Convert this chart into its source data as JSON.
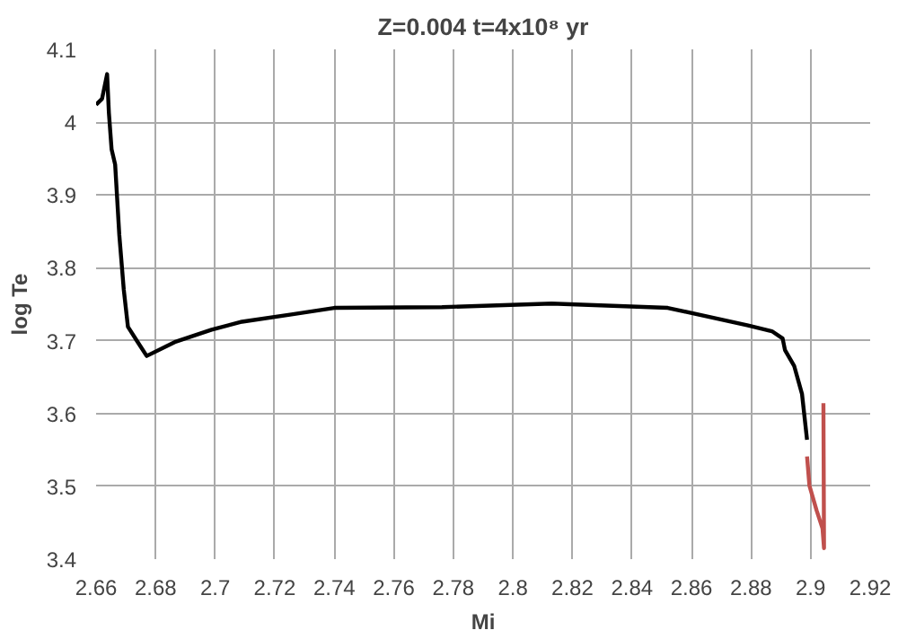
{
  "chart_data": {
    "type": "line",
    "title": "Z=0.004 t=4x10⁸ yr",
    "xlabel": "Mi",
    "ylabel": "log Te",
    "xlim": [
      2.66,
      2.92
    ],
    "ylim": [
      3.4,
      4.1
    ],
    "xticks": [
      2.66,
      2.68,
      2.7,
      2.72,
      2.74,
      2.76,
      2.78,
      2.8,
      2.82,
      2.84,
      2.86,
      2.88,
      2.9,
      2.92
    ],
    "yticks": [
      3.4,
      3.5,
      3.6,
      3.7,
      3.8,
      3.9,
      4,
      4.1
    ],
    "grid": true,
    "marker": "none",
    "line_style": "solid",
    "series": [
      {
        "color": "#000000",
        "x": [
          2.66,
          2.662,
          2.6637,
          2.6643,
          2.6652,
          2.6664,
          2.6678,
          2.6693,
          2.6707,
          2.674,
          2.677,
          2.6864,
          2.6988,
          2.709,
          2.7256,
          2.74,
          2.7762,
          2.813,
          2.852,
          2.879,
          2.887,
          2.8906,
          2.8914,
          2.8945,
          2.8971,
          2.8988
        ],
        "values": [
          4.024,
          4.032,
          4.066,
          4.013,
          3.963,
          3.942,
          3.845,
          3.77,
          3.719,
          3.698,
          3.679,
          3.698,
          3.715,
          3.726,
          3.736,
          3.745,
          3.746,
          3.751,
          3.745,
          3.721,
          3.713,
          3.703,
          3.687,
          3.665,
          3.627,
          3.564
        ]
      },
      {
        "color": "#c0504d",
        "x": [
          2.8988,
          2.8996,
          2.902,
          2.904,
          2.9045,
          2.9043
        ],
        "values": [
          3.541,
          3.501,
          3.467,
          3.442,
          3.415,
          3.614
        ]
      }
    ]
  }
}
